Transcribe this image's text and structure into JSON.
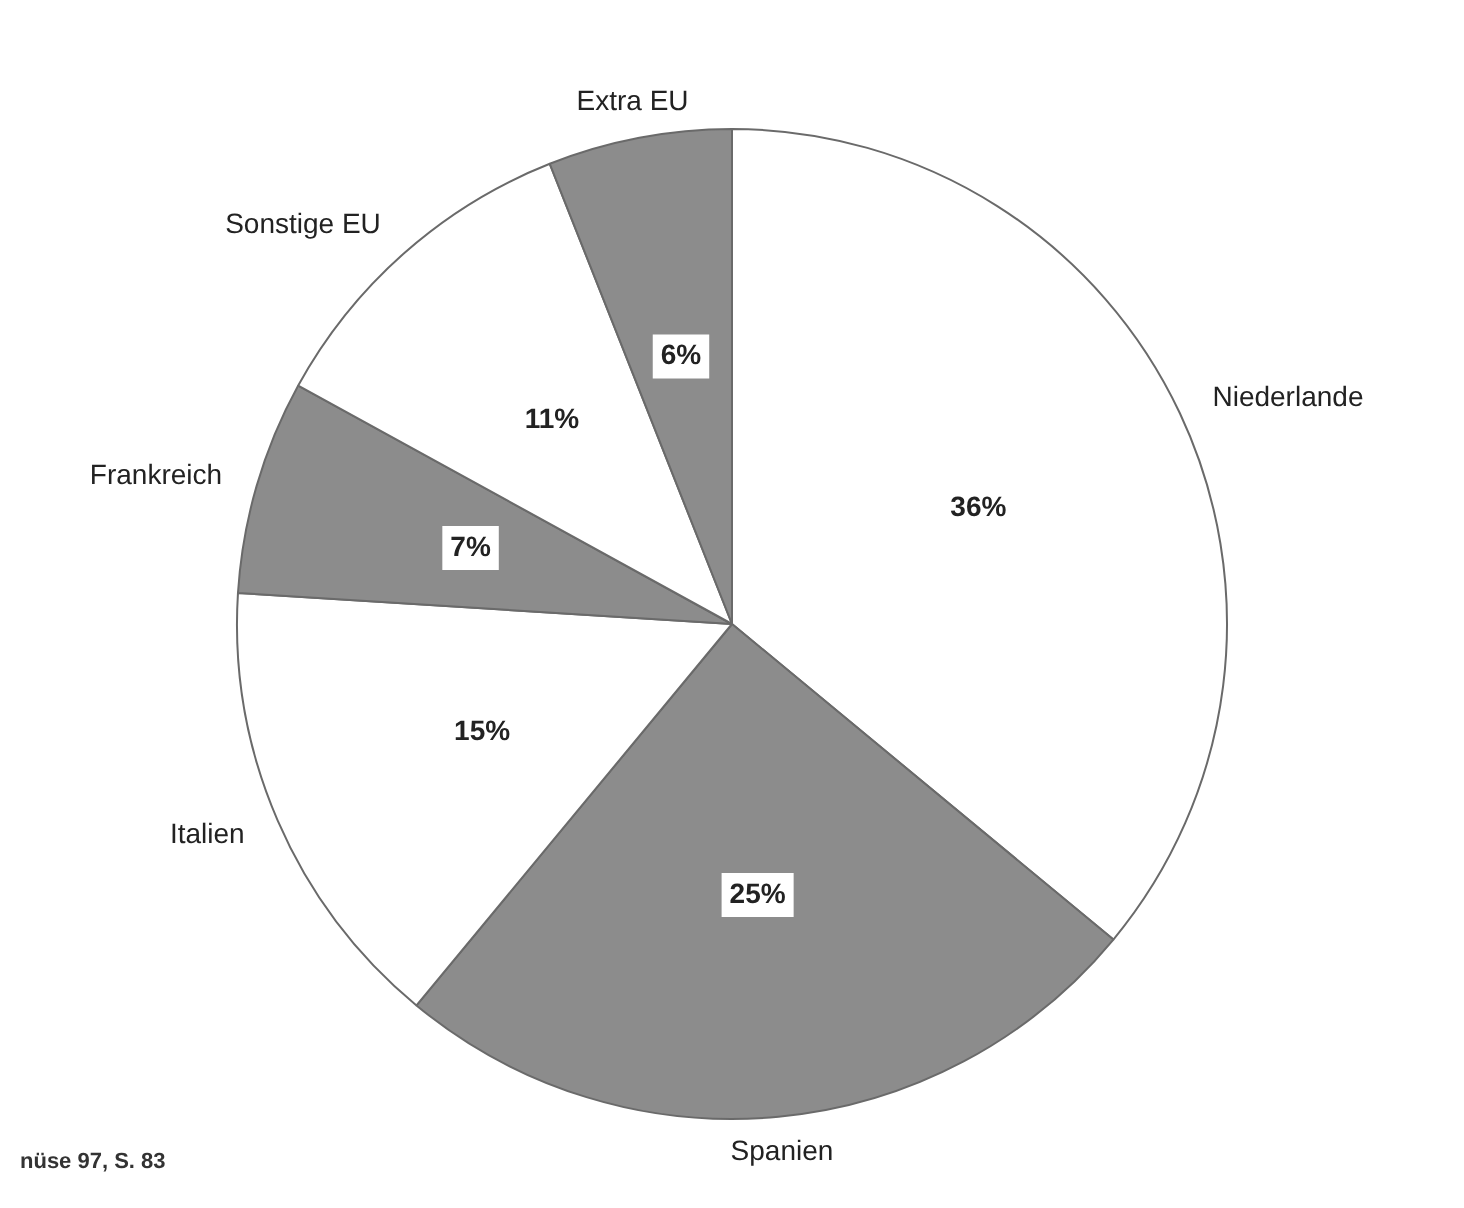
{
  "chart_data": {
    "type": "pie",
    "categories": [
      "Niederlande",
      "Spanien",
      "Italien",
      "Frankreich",
      "Sonstige EU",
      "Extra EU"
    ],
    "values": [
      36,
      25,
      15,
      7,
      11,
      6
    ],
    "colors": [
      "#ffffff",
      "#8c8c8c",
      "#ffffff",
      "#8c8c8c",
      "#ffffff",
      "#8c8c8c"
    ],
    "value_labels": [
      "36%",
      "25%",
      "15%",
      "7%",
      "11%",
      "6%"
    ],
    "annotations": [
      "nüse 97, S. 83"
    ],
    "legend": false
  }
}
